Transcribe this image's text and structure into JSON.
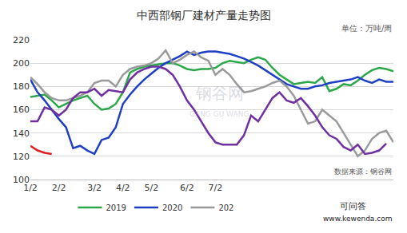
{
  "chart_data": {
    "type": "line",
    "title": "中西部钢厂建材产量走势图",
    "ylabel": "单位：万吨/周",
    "annotations": [
      "数据来源：钢谷网",
      "钢谷网",
      "GANG GU WANG",
      "可问答",
      "www.kewenda.com"
    ],
    "categories": [
      "1/2",
      null,
      null,
      null,
      "2/2",
      null,
      null,
      null,
      null,
      "3/2",
      null,
      null,
      null,
      "4/2",
      null,
      null,
      null,
      "5/2",
      null,
      null,
      null,
      null,
      "6/2",
      null,
      null,
      null,
      "7/2",
      null,
      null,
      null,
      null,
      null,
      null,
      null,
      null,
      null,
      null,
      null,
      null,
      null,
      null,
      null,
      null,
      null,
      null,
      null,
      null,
      null,
      null,
      null,
      null,
      null
    ],
    "ylim": [
      100,
      220
    ],
    "yticks": [
      100,
      120,
      140,
      160,
      180,
      200,
      220
    ],
    "grid": true,
    "legend": "bottom",
    "series": [
      {
        "name": "2019",
        "color": "#2ca84a",
        "values": [
          171,
          172,
          173,
          168,
          162,
          165,
          168,
          170,
          172,
          165,
          160,
          161,
          165,
          175,
          192,
          195,
          197,
          198,
          199,
          200,
          200,
          198,
          195,
          194,
          195,
          195,
          196,
          200,
          202,
          201,
          200,
          203,
          205,
          203,
          196,
          190,
          186,
          182,
          183,
          184,
          183,
          188,
          176,
          178,
          182,
          181,
          185,
          190,
          194,
          196,
          195,
          193
        ]
      },
      {
        "name": "2020",
        "color": "#1f3fc4",
        "values": [
          186,
          175,
          168,
          160,
          152,
          145,
          127,
          129,
          125,
          122,
          134,
          136,
          145,
          165,
          173,
          180,
          186,
          191,
          196,
          200,
          203,
          206,
          210,
          207,
          209,
          210,
          210,
          209,
          208,
          206,
          204,
          201,
          198,
          194,
          190,
          186,
          182,
          180,
          178,
          178,
          180,
          181,
          183,
          184,
          185,
          186,
          188,
          185,
          183,
          186,
          184,
          184
        ]
      },
      {
        "name": "202",
        "color": "#9a9a9a",
        "values": [
          188,
          182,
          175,
          170,
          168,
          168,
          170,
          172,
          175,
          183,
          185,
          185,
          180,
          190,
          195,
          197,
          198,
          200,
          204,
          211,
          200,
          203,
          207,
          210,
          205,
          202,
          190,
          195,
          190,
          182,
          175,
          176,
          178,
          180,
          183,
          185,
          180,
          172,
          160,
          148,
          150,
          160,
          155,
          150,
          140,
          130,
          120,
          125,
          135,
          140,
          142,
          132
        ]
      },
      {
        "color": "#7030a0",
        "values": [
          150,
          150,
          162,
          160,
          155,
          160,
          170,
          175,
          175,
          178,
          172,
          177,
          176,
          175,
          186,
          192,
          195,
          197,
          197,
          195,
          190,
          180,
          168,
          160,
          150,
          140,
          132,
          130,
          130,
          130,
          138,
          155,
          150,
          160,
          170,
          175,
          168,
          166,
          170,
          163,
          155,
          145,
          138,
          135,
          128,
          125,
          130,
          122,
          123,
          125,
          131,
          null
        ]
      },
      {
        "color": "#e02020",
        "values": [
          129,
          125,
          123,
          122,
          null,
          null,
          null,
          null,
          null,
          null,
          null,
          null,
          null,
          null,
          null,
          null,
          null,
          null,
          null,
          null,
          null,
          null,
          null,
          null,
          null,
          null,
          null,
          null,
          null,
          null,
          null,
          null,
          null,
          null,
          null,
          null,
          null,
          null,
          null,
          null,
          null,
          null,
          null,
          null,
          null,
          null,
          null,
          null,
          null,
          null,
          null,
          null
        ]
      }
    ]
  }
}
